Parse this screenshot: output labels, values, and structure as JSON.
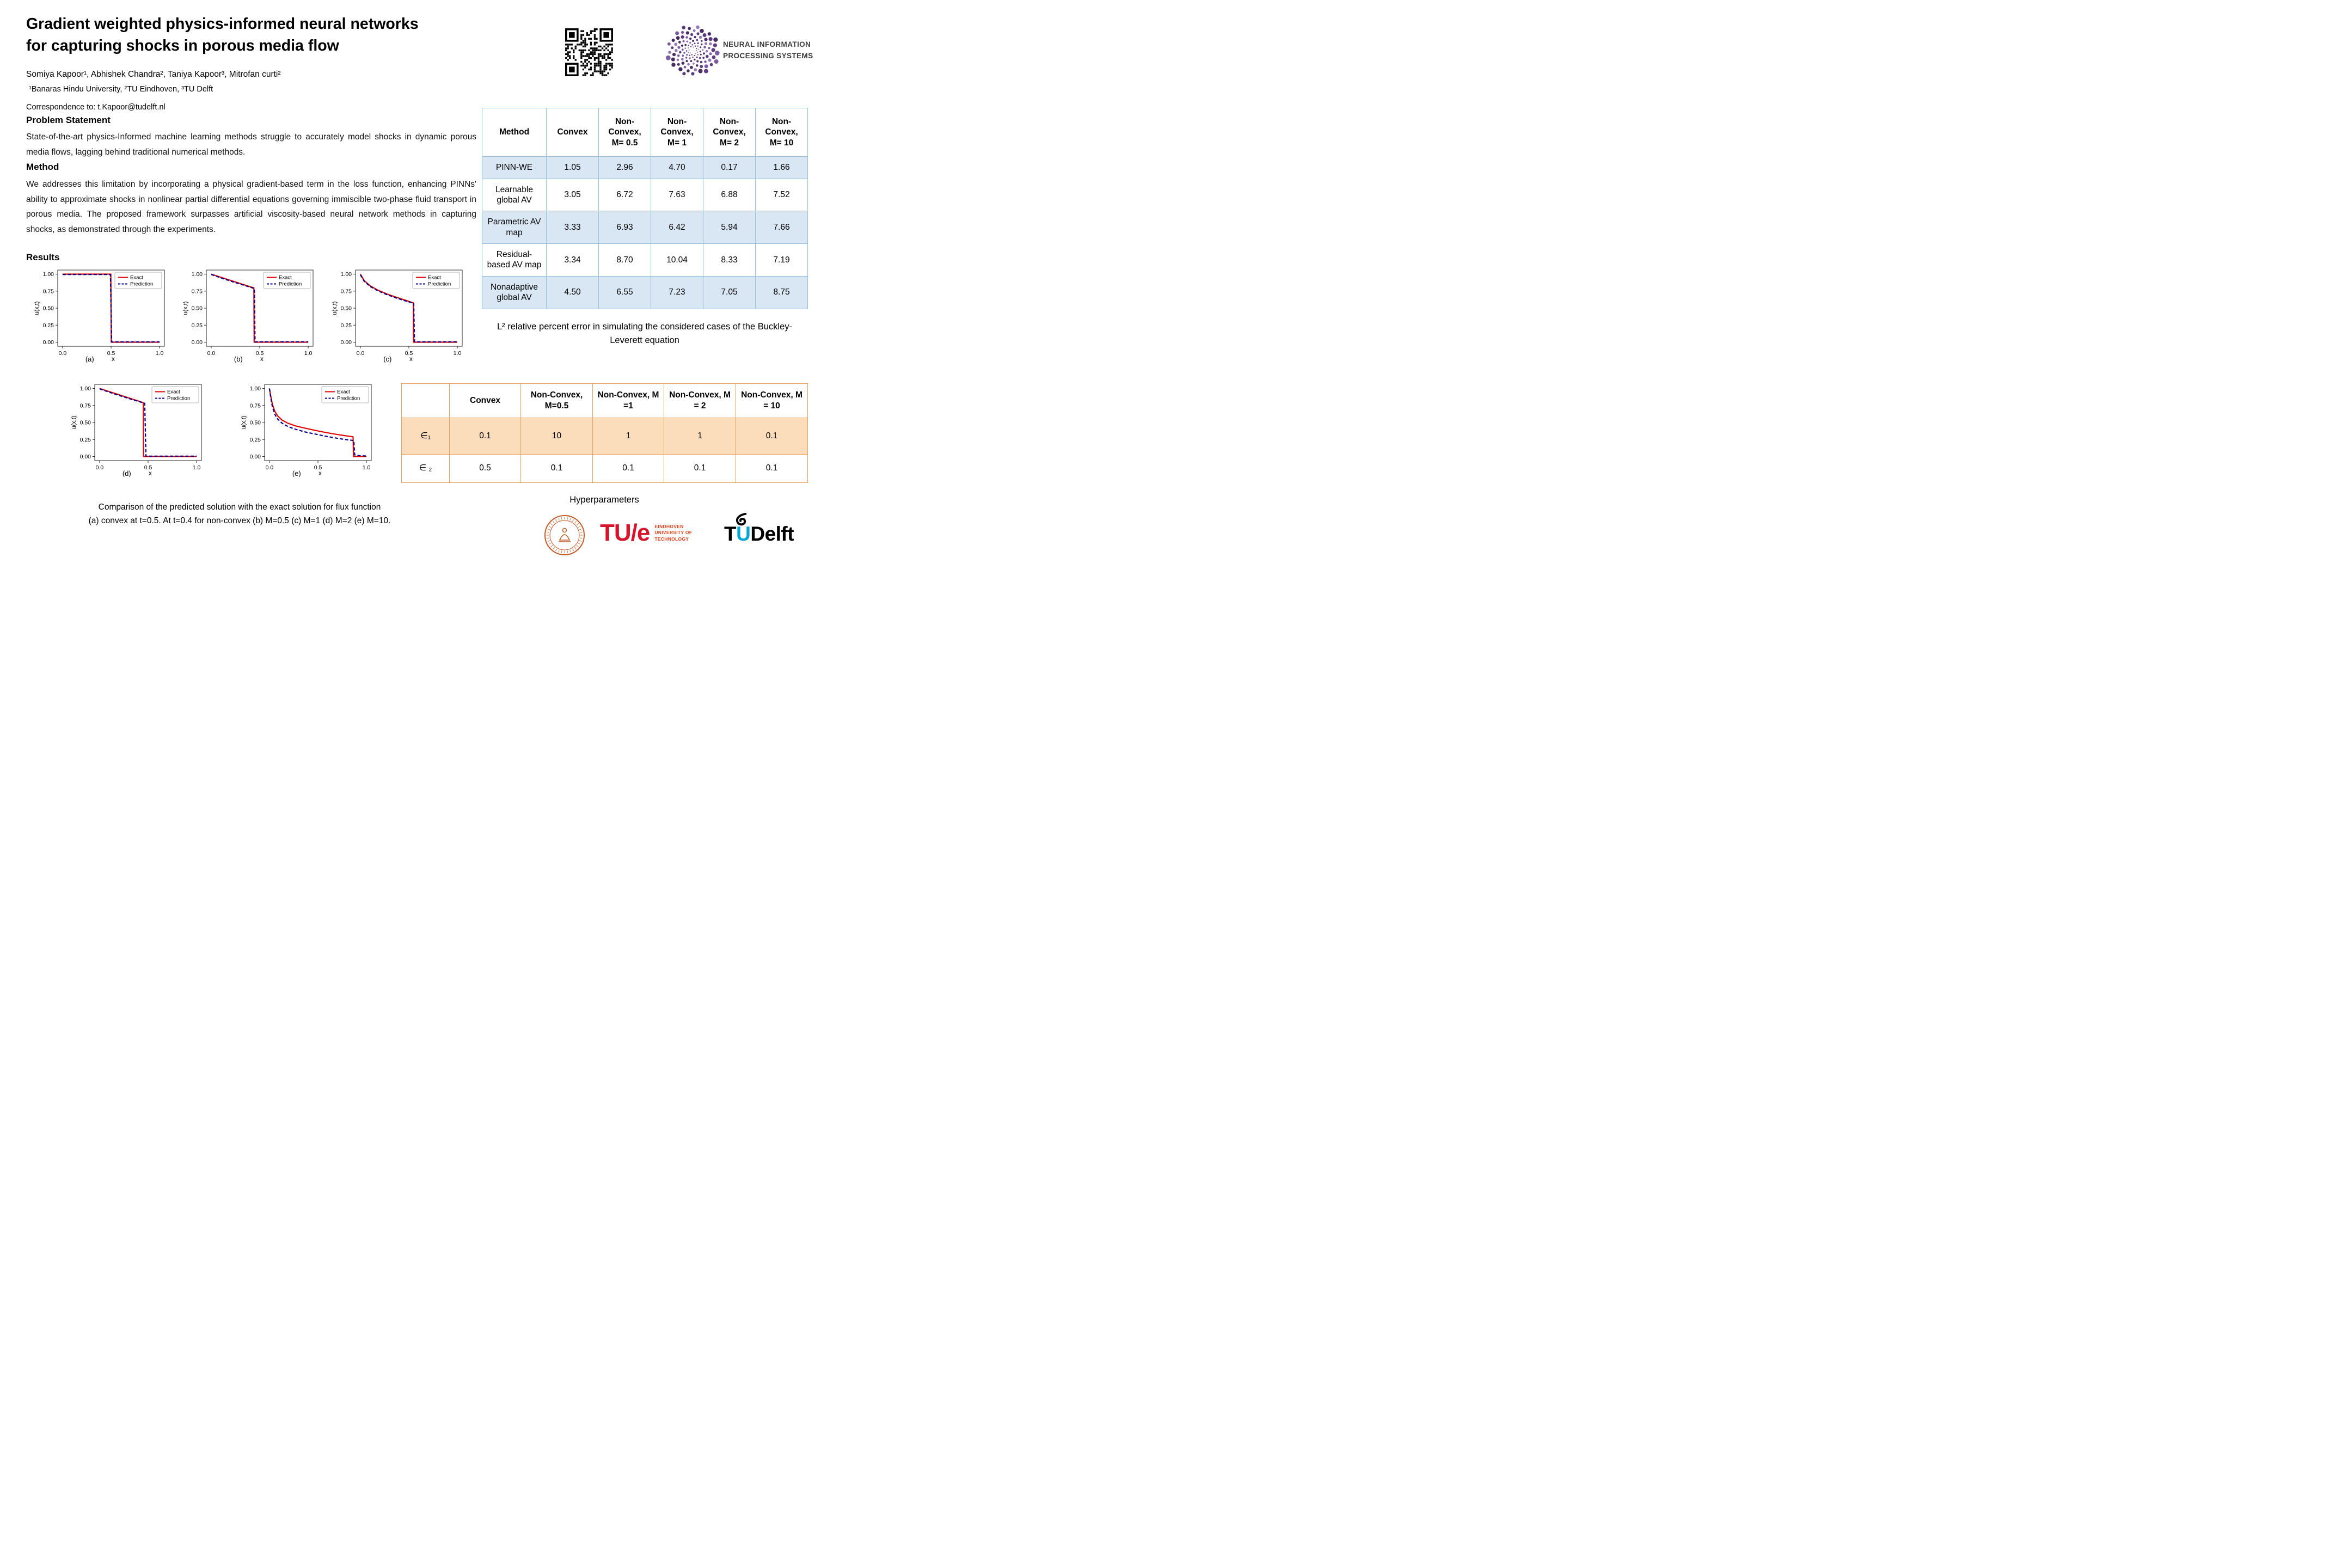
{
  "header": {
    "title_line1": "Gradient weighted physics-informed neural networks",
    "title_line2": "for capturing shocks in porous media flow",
    "authors": "Somiya Kapoor¹, Abhishek Chandra², Taniya Kapoor³, Mitrofan curti²",
    "affiliations": "¹Banaras Hindu University, ²TU Eindhoven, ³TU Delft",
    "correspondence": "Correspondence to: t.Kapoor@tudelft.nl"
  },
  "neurips": {
    "line1": "NEURAL INFORMATION",
    "line2": "PROCESSING SYSTEMS"
  },
  "sections": {
    "problem_heading": "Problem Statement",
    "problem_body": "State-of-the-art physics-Informed machine learning methods struggle to accurately model shocks in dynamic porous media flows, lagging behind traditional numerical methods.",
    "method_heading": "Method",
    "method_body": "We addresses this limitation by incorporating a physical gradient-based term in the loss function, enhancing PINNs' ability to approximate shocks in nonlinear partial differential equations governing immiscible two-phase fluid transport in porous media. The proposed framework surpasses artificial viscosity-based neural network methods in capturing shocks, as demonstrated through the experiments.",
    "results_heading": "Results"
  },
  "figure_caption": {
    "line1": "Comparison of the predicted solution with the exact solution for flux function",
    "line2": "(a) convex at t=0.5. At t=0.4 for non-convex (b) M=0.5 (c) M=1 (d) M=2 (e) M=10."
  },
  "error_table": {
    "headers": [
      "Method",
      "Convex",
      "Non-Convex, M= 0.5",
      "Non-Convex, M= 1",
      "Non-Convex, M= 2",
      "Non-Convex, M= 10"
    ],
    "rows": [
      {
        "label": "PINN-WE",
        "values": [
          "1.05",
          "2.96",
          "4.70",
          "0.17",
          "1.66"
        ]
      },
      {
        "label": "Learnable global AV",
        "values": [
          "3.05",
          "6.72",
          "7.63",
          "6.88",
          "7.52"
        ]
      },
      {
        "label": "Parametric AV map",
        "values": [
          "3.33",
          "6.93",
          "6.42",
          "5.94",
          "7.66"
        ]
      },
      {
        "label": "Residual-based AV map",
        "values": [
          "3.34",
          "8.70",
          "10.04",
          "8.33",
          "7.19"
        ]
      },
      {
        "label": "Nonadaptive global AV",
        "values": [
          "4.50",
          "6.55",
          "7.23",
          "7.05",
          "8.75"
        ]
      }
    ],
    "caption": "L² relative percent error in simulating the considered cases of the Buckley-Leverett equation"
  },
  "hyper_table": {
    "headers": [
      "",
      "Convex",
      "Non-Convex, M=0.5",
      "Non-Convex, M =1",
      "Non-Convex, M = 2",
      "Non-Convex, M = 10"
    ],
    "rows": [
      {
        "label": "∈₁",
        "values": [
          "0.1",
          "10",
          "1",
          "1",
          "0.1"
        ]
      },
      {
        "label": "∈ ₂",
        "values": [
          "0.5",
          "0.1",
          "0.1",
          "0.1",
          "0.1"
        ]
      }
    ],
    "caption": "Hyperparameters"
  },
  "chart_data": {
    "type": "line",
    "xlabel": "x",
    "ylabel": "u(x,t)",
    "xlim": [
      -0.05,
      1.05
    ],
    "ylim": [
      -0.06,
      1.06
    ],
    "xticks": [
      0.0,
      0.5,
      1.0
    ],
    "xtick_labels": [
      "0.0",
      "0.5",
      "1.0"
    ],
    "yticks": [
      0.0,
      0.25,
      0.5,
      0.75,
      1.0
    ],
    "ytick_labels": [
      "0.00",
      "0.25",
      "0.50",
      "0.75",
      "1.00"
    ],
    "legend": [
      "Exact",
      "Prediction"
    ],
    "colors": {
      "Exact": "#e50000",
      "Prediction": "#00008b"
    },
    "legend_position": "upper right",
    "grid": false,
    "plots": [
      {
        "label": "(a)",
        "series": [
          {
            "name": "Exact",
            "points": [
              [
                0,
                1
              ],
              [
                0.498,
                1
              ],
              [
                0.502,
                0
              ],
              [
                1,
                0
              ]
            ]
          },
          {
            "name": "Prediction",
            "points": [
              [
                0,
                0.995
              ],
              [
                0.493,
                0.995
              ],
              [
                0.506,
                0.004
              ],
              [
                1,
                0.004
              ]
            ]
          }
        ]
      },
      {
        "label": "(b)",
        "series": [
          {
            "name": "Exact",
            "points": [
              [
                0,
                1
              ],
              [
                0.12,
                0.945
              ],
              [
                0.25,
                0.885
              ],
              [
                0.38,
                0.825
              ],
              [
                0.44,
                0.798
              ],
              [
                0.443,
                0
              ],
              [
                1,
                0
              ]
            ]
          },
          {
            "name": "Prediction",
            "points": [
              [
                0,
                0.995
              ],
              [
                0.12,
                0.935
              ],
              [
                0.25,
                0.875
              ],
              [
                0.38,
                0.818
              ],
              [
                0.445,
                0.79
              ],
              [
                0.452,
                0.006
              ],
              [
                1,
                0.006
              ]
            ]
          }
        ]
      },
      {
        "label": "(c)",
        "series": [
          {
            "name": "Exact",
            "points": [
              [
                0,
                1
              ],
              [
                0.04,
                0.905
              ],
              [
                0.1,
                0.83
              ],
              [
                0.18,
                0.765
              ],
              [
                0.28,
                0.705
              ],
              [
                0.38,
                0.655
              ],
              [
                0.48,
                0.61
              ],
              [
                0.545,
                0.578
              ],
              [
                0.548,
                0
              ],
              [
                1,
                0
              ]
            ]
          },
          {
            "name": "Prediction",
            "points": [
              [
                0,
                0.99
              ],
              [
                0.04,
                0.895
              ],
              [
                0.1,
                0.82
              ],
              [
                0.18,
                0.755
              ],
              [
                0.28,
                0.695
              ],
              [
                0.38,
                0.645
              ],
              [
                0.48,
                0.6
              ],
              [
                0.55,
                0.572
              ],
              [
                0.558,
                0.006
              ],
              [
                1,
                0.006
              ]
            ]
          }
        ]
      },
      {
        "label": "(d)",
        "series": [
          {
            "name": "Exact",
            "points": [
              [
                0,
                1
              ],
              [
                0.12,
                0.945
              ],
              [
                0.25,
                0.885
              ],
              [
                0.38,
                0.825
              ],
              [
                0.45,
                0.792
              ],
              [
                0.453,
                0
              ],
              [
                1,
                0
              ]
            ]
          },
          {
            "name": "Prediction",
            "points": [
              [
                0,
                0.995
              ],
              [
                0.12,
                0.935
              ],
              [
                0.25,
                0.875
              ],
              [
                0.4,
                0.81
              ],
              [
                0.465,
                0.782
              ],
              [
                0.478,
                0.006
              ],
              [
                1,
                0.006
              ]
            ]
          }
        ]
      },
      {
        "label": "(e)",
        "series": [
          {
            "name": "Exact",
            "points": [
              [
                0,
                1
              ],
              [
                0.012,
                0.9
              ],
              [
                0.03,
                0.77
              ],
              [
                0.055,
                0.665
              ],
              [
                0.085,
                0.595
              ],
              [
                0.13,
                0.535
              ],
              [
                0.19,
                0.49
              ],
              [
                0.27,
                0.45
              ],
              [
                0.37,
                0.415
              ],
              [
                0.47,
                0.385
              ],
              [
                0.57,
                0.355
              ],
              [
                0.67,
                0.33
              ],
              [
                0.77,
                0.308
              ],
              [
                0.85,
                0.292
              ],
              [
                0.862,
                0.288
              ],
              [
                0.866,
                0
              ],
              [
                1,
                0
              ]
            ]
          },
          {
            "name": "Prediction",
            "points": [
              [
                0,
                1
              ],
              [
                0.012,
                0.88
              ],
              [
                0.03,
                0.73
              ],
              [
                0.055,
                0.62
              ],
              [
                0.085,
                0.55
              ],
              [
                0.13,
                0.49
              ],
              [
                0.19,
                0.44
              ],
              [
                0.27,
                0.4
              ],
              [
                0.37,
                0.36
              ],
              [
                0.47,
                0.33
              ],
              [
                0.57,
                0.3
              ],
              [
                0.67,
                0.275
              ],
              [
                0.77,
                0.252
              ],
              [
                0.85,
                0.238
              ],
              [
                0.87,
                0.232
              ],
              [
                0.878,
                0.025
              ],
              [
                0.93,
                0.012
              ],
              [
                1,
                0.008
              ]
            ]
          }
        ]
      }
    ]
  },
  "logos": {
    "tue_main": "TU/e",
    "tue_sub": [
      "EINDHOVEN",
      "UNIVERSITY OF",
      "TECHNOLOGY"
    ],
    "tud_t": "T",
    "tud_u": "U",
    "tud_rest": "Delft"
  },
  "colors": {
    "exact_line": "#e50000",
    "prediction_line": "#00008b",
    "error_table_fill": "#d9e7f5",
    "error_table_border": "#96bede",
    "hyper_table_fill": "#fbdcbb",
    "hyper_table_border": "#e9a262",
    "neurips_purple": "#5d3b82",
    "tue_red": "#d6152d",
    "tud_cyan": "#00a6d6",
    "bhu_orange": "#c05a28"
  }
}
